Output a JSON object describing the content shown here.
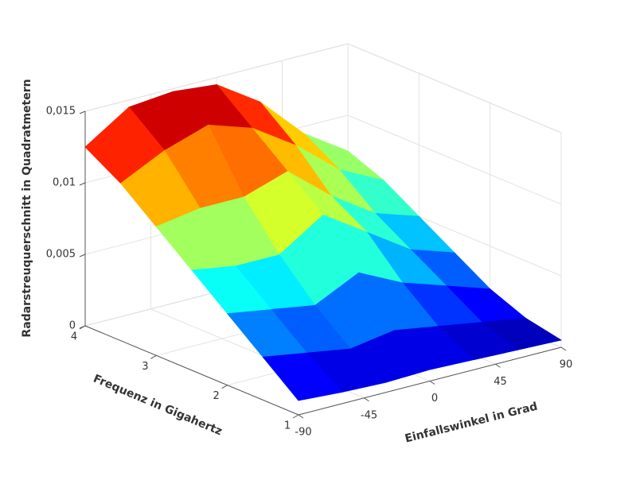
{
  "chart_data": {
    "type": "surface",
    "xlabel": "Einfallswinkel in Grad",
    "ylabel": "Frequenz in Gigahertz",
    "zlabel": "Radarstreuquerschnitt in Quadratmetern",
    "x": [
      -90,
      -60,
      -30,
      0,
      30,
      60,
      90
    ],
    "y": [
      1,
      1.5,
      2,
      2.5,
      3,
      3.5,
      4
    ],
    "z": [
      [
        0.001,
        0.0008,
        0.0007,
        0.0008,
        0.0007,
        0.0006,
        0.0005
      ],
      [
        0.003,
        0.0025,
        0.002,
        0.0025,
        0.002,
        0.0015,
        0.001
      ],
      [
        0.005,
        0.0045,
        0.004,
        0.0055,
        0.004,
        0.003,
        0.002
      ],
      [
        0.007,
        0.0065,
        0.0065,
        0.0085,
        0.0065,
        0.0045,
        0.0035
      ],
      [
        0.009,
        0.0095,
        0.0095,
        0.0105,
        0.008,
        0.006,
        0.005
      ],
      [
        0.011,
        0.0125,
        0.0135,
        0.0125,
        0.0105,
        0.008,
        0.0065
      ],
      [
        0.0125,
        0.0145,
        0.0148,
        0.0145,
        0.0125,
        0.0095,
        0.0075
      ]
    ],
    "colormap": "jet",
    "xlim": [
      -90,
      90
    ],
    "xticks": [
      -90,
      -45,
      0,
      45,
      90
    ],
    "ylim": [
      1,
      4
    ],
    "yticks": [
      1,
      2,
      3,
      4
    ],
    "zlim": [
      0,
      0.015
    ],
    "zticks": [
      0,
      {
        "value": 0.005,
        "label": "0,005"
      },
      {
        "value": 0.01,
        "label": "0,01"
      },
      {
        "value": 0.015,
        "label": "0,015"
      }
    ],
    "grid": true
  }
}
